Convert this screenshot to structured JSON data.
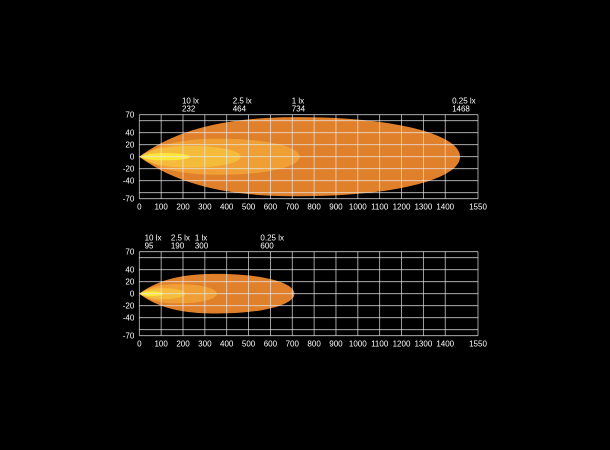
{
  "colors": {
    "background": "#000000",
    "grid": "#e8e8e8",
    "zone_025": "#e8842c",
    "zone_1": "#f0a035",
    "zone_25": "#f5bd3c",
    "zone_10": "#fbe83a"
  },
  "chart_data": [
    {
      "type": "area",
      "xlim": [
        0,
        1550
      ],
      "ylim": [
        -70,
        70
      ],
      "x_ticks": [
        0,
        100,
        200,
        300,
        400,
        500,
        600,
        700,
        800,
        900,
        1000,
        1100,
        1200,
        1300,
        1400,
        1550
      ],
      "y_ticks": [
        70,
        40,
        20,
        0,
        -20,
        -40,
        -70
      ],
      "grid": true,
      "isolux": [
        {
          "label": "10 lx",
          "distance": "232",
          "reach": 232,
          "half_width": 6
        },
        {
          "label": "2.5 lx",
          "distance": "464",
          "reach": 464,
          "half_width": 18
        },
        {
          "label": "1 lx",
          "distance": "734",
          "reach": 734,
          "half_width": 30
        },
        {
          "label": "0.25 lx",
          "distance": "1468",
          "reach": 1468,
          "half_width": 66
        }
      ]
    },
    {
      "type": "area",
      "xlim": [
        0,
        1550
      ],
      "ylim": [
        -70,
        70
      ],
      "x_ticks": [
        0,
        100,
        200,
        300,
        400,
        500,
        600,
        700,
        800,
        900,
        1000,
        1100,
        1200,
        1300,
        1400,
        1550
      ],
      "y_ticks": [
        70,
        40,
        20,
        0,
        -20,
        -40,
        -70
      ],
      "grid": true,
      "isolux": [
        {
          "label": "10 lx",
          "distance": "95",
          "reach": 110,
          "half_width": 4
        },
        {
          "label": "2.5 lx",
          "distance": "190",
          "reach": 210,
          "half_width": 9
        },
        {
          "label": "1 lx",
          "distance": "300",
          "reach": 355,
          "half_width": 16
        },
        {
          "label": "0.25 lx",
          "distance": "600",
          "reach": 710,
          "half_width": 33
        }
      ]
    }
  ]
}
